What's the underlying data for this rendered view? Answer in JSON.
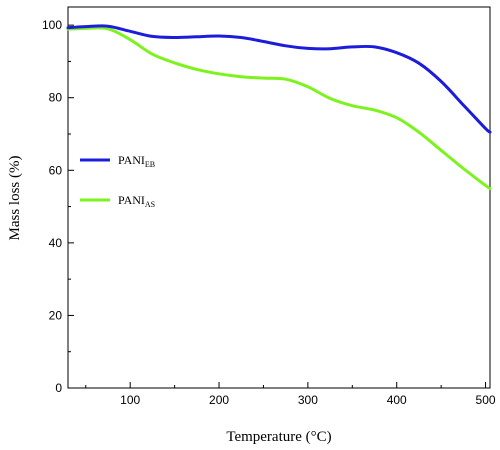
{
  "chart_data": {
    "type": "line",
    "title": "",
    "xlabel": "Temperature (°C)",
    "ylabel": "Mass loss (%)",
    "xlim": [
      30,
      505
    ],
    "ylim": [
      0,
      105
    ],
    "x_ticks": [
      100,
      200,
      300,
      400,
      500
    ],
    "y_ticks": [
      0,
      20,
      40,
      60,
      80,
      100
    ],
    "grid": false,
    "legend_position": "left-middle",
    "series": [
      {
        "name_main": "PANI",
        "name_sub": "EB",
        "color": "#1c1cdb",
        "x": [
          30,
          50,
          75,
          100,
          125,
          150,
          175,
          200,
          225,
          250,
          275,
          300,
          325,
          350,
          375,
          400,
          425,
          450,
          475,
          500,
          505
        ],
        "y": [
          99.3,
          99.6,
          99.7,
          98.3,
          96.9,
          96.6,
          96.8,
          97.0,
          96.6,
          95.5,
          94.3,
          93.6,
          93.5,
          94.0,
          94.0,
          92.4,
          89.5,
          84.5,
          78.0,
          71.5,
          70.5
        ]
      },
      {
        "name_main": "PANI",
        "name_sub": "AS",
        "color": "#7cf31e",
        "x": [
          30,
          50,
          75,
          100,
          125,
          150,
          175,
          200,
          225,
          250,
          275,
          300,
          325,
          350,
          375,
          400,
          425,
          450,
          475,
          500,
          505
        ],
        "y": [
          98.9,
          99.1,
          99.0,
          96.0,
          92.0,
          89.6,
          87.8,
          86.6,
          85.8,
          85.4,
          85.1,
          83.0,
          79.8,
          77.8,
          76.6,
          74.5,
          70.5,
          65.5,
          60.5,
          55.8,
          55.0
        ]
      }
    ]
  }
}
